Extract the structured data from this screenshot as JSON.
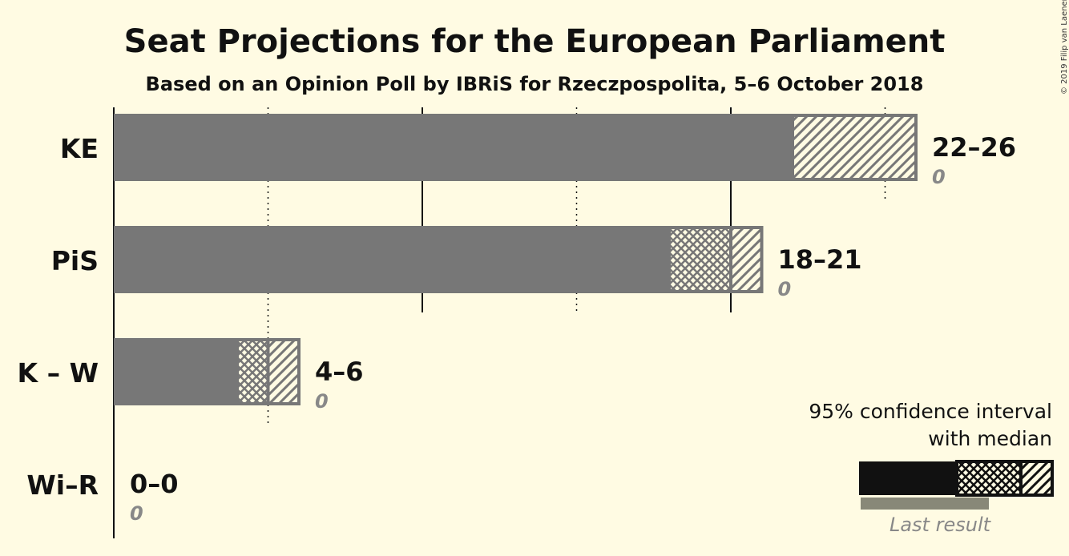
{
  "chart_data": {
    "type": "bar",
    "orientation": "horizontal",
    "title": "Seat Projections for the European Parliament",
    "subtitle": "Based on an Opinion Poll by IBRiS for Rzeczpospolita, 5–6 October 2018",
    "categories": [
      "KE",
      "PiS",
      "K – W",
      "Wi–R"
    ],
    "median": [
      22,
      20,
      5,
      0
    ],
    "ci_low": [
      22,
      18,
      4,
      0
    ],
    "ci_high": [
      26,
      21,
      6,
      0
    ],
    "range_labels": [
      "22–26",
      "18–21",
      "4–6",
      "0–0"
    ],
    "last_result": [
      0,
      0,
      0,
      0
    ],
    "last_result_labels": [
      "0",
      "0",
      "0",
      "0"
    ],
    "xlim": [
      0,
      26
    ],
    "gridlines": [
      5,
      10,
      15,
      20,
      25
    ],
    "legend": {
      "line1": "95% confidence interval",
      "line2": "with median",
      "last_label": "Last result",
      "placement": "bottom-right"
    },
    "colors": {
      "bar": "#777777",
      "legend_bar": "#111111",
      "last_result": "#888878",
      "background": "#fffbe3"
    }
  },
  "copyright": "© 2019 Filip van Laenen"
}
